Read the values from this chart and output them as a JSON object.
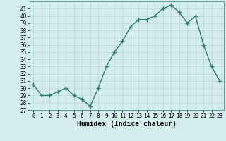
{
  "x": [
    0,
    1,
    2,
    3,
    4,
    5,
    6,
    7,
    8,
    9,
    10,
    11,
    12,
    13,
    14,
    15,
    16,
    17,
    18,
    19,
    20,
    21,
    22,
    23
  ],
  "y": [
    30.5,
    29.0,
    29.0,
    29.5,
    30.0,
    29.0,
    28.5,
    27.5,
    30.0,
    33.0,
    35.0,
    36.5,
    38.5,
    39.5,
    39.5,
    40.0,
    41.0,
    41.5,
    40.5,
    39.0,
    40.0,
    36.0,
    33.0,
    31.0
  ],
  "xlabel": "Humidex (Indice chaleur)",
  "line_color": "#2e7d6e",
  "marker": "+",
  "marker_size": 4,
  "bg_color": "#d4eeed",
  "grid_color": "#b8d8d4",
  "ylim": [
    27,
    42
  ],
  "xlim": [
    -0.5,
    23.5
  ],
  "yticks": [
    27,
    28,
    29,
    30,
    31,
    32,
    33,
    34,
    35,
    36,
    37,
    38,
    39,
    40,
    41
  ],
  "xticks": [
    0,
    1,
    2,
    3,
    4,
    5,
    6,
    7,
    8,
    9,
    10,
    11,
    12,
    13,
    14,
    15,
    16,
    17,
    18,
    19,
    20,
    21,
    22,
    23
  ],
  "tick_fontsize": 5.5,
  "xlabel_fontsize": 7,
  "line_width": 1.0
}
